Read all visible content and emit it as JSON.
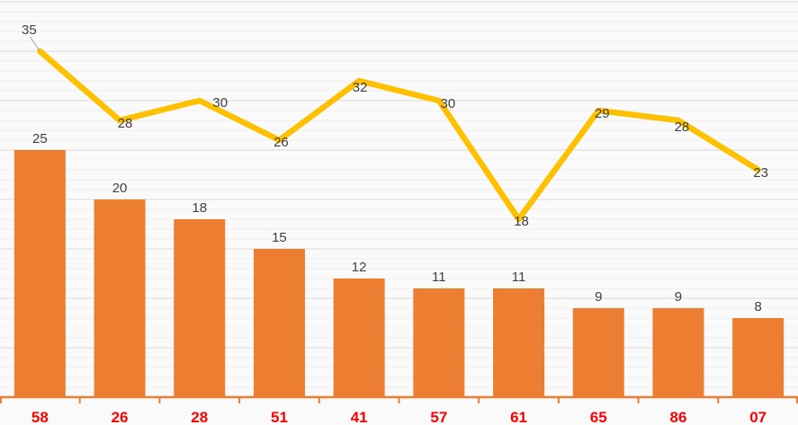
{
  "chart_data": {
    "type": "bar",
    "categories": [
      "58",
      "26",
      "28",
      "51",
      "41",
      "57",
      "61",
      "65",
      "86",
      "07"
    ],
    "series": [
      {
        "name": "bar-series",
        "type": "bar",
        "color": "#ED7D31",
        "values": [
          25,
          20,
          18,
          15,
          12,
          11,
          11,
          9,
          9,
          8
        ]
      },
      {
        "name": "line-series",
        "type": "line",
        "color": "#FFC000",
        "values": [
          35,
          28,
          30,
          26,
          32,
          30,
          18,
          29,
          28,
          23
        ]
      }
    ],
    "title": "",
    "xlabel": "",
    "ylabel": "",
    "ylim": [
      0,
      40
    ],
    "grid": {
      "on": true,
      "minor_step": 1,
      "major_step": 5,
      "minor_color": "#EFEFEF",
      "major_color": "#D9D9D9"
    },
    "legend_position": "none",
    "background": "#FAFAFA",
    "data_label_color": "#404040",
    "category_label_color": "#FF0000",
    "axis_color": "#ED7D31",
    "leader_line_color": "#A6A6A6"
  }
}
